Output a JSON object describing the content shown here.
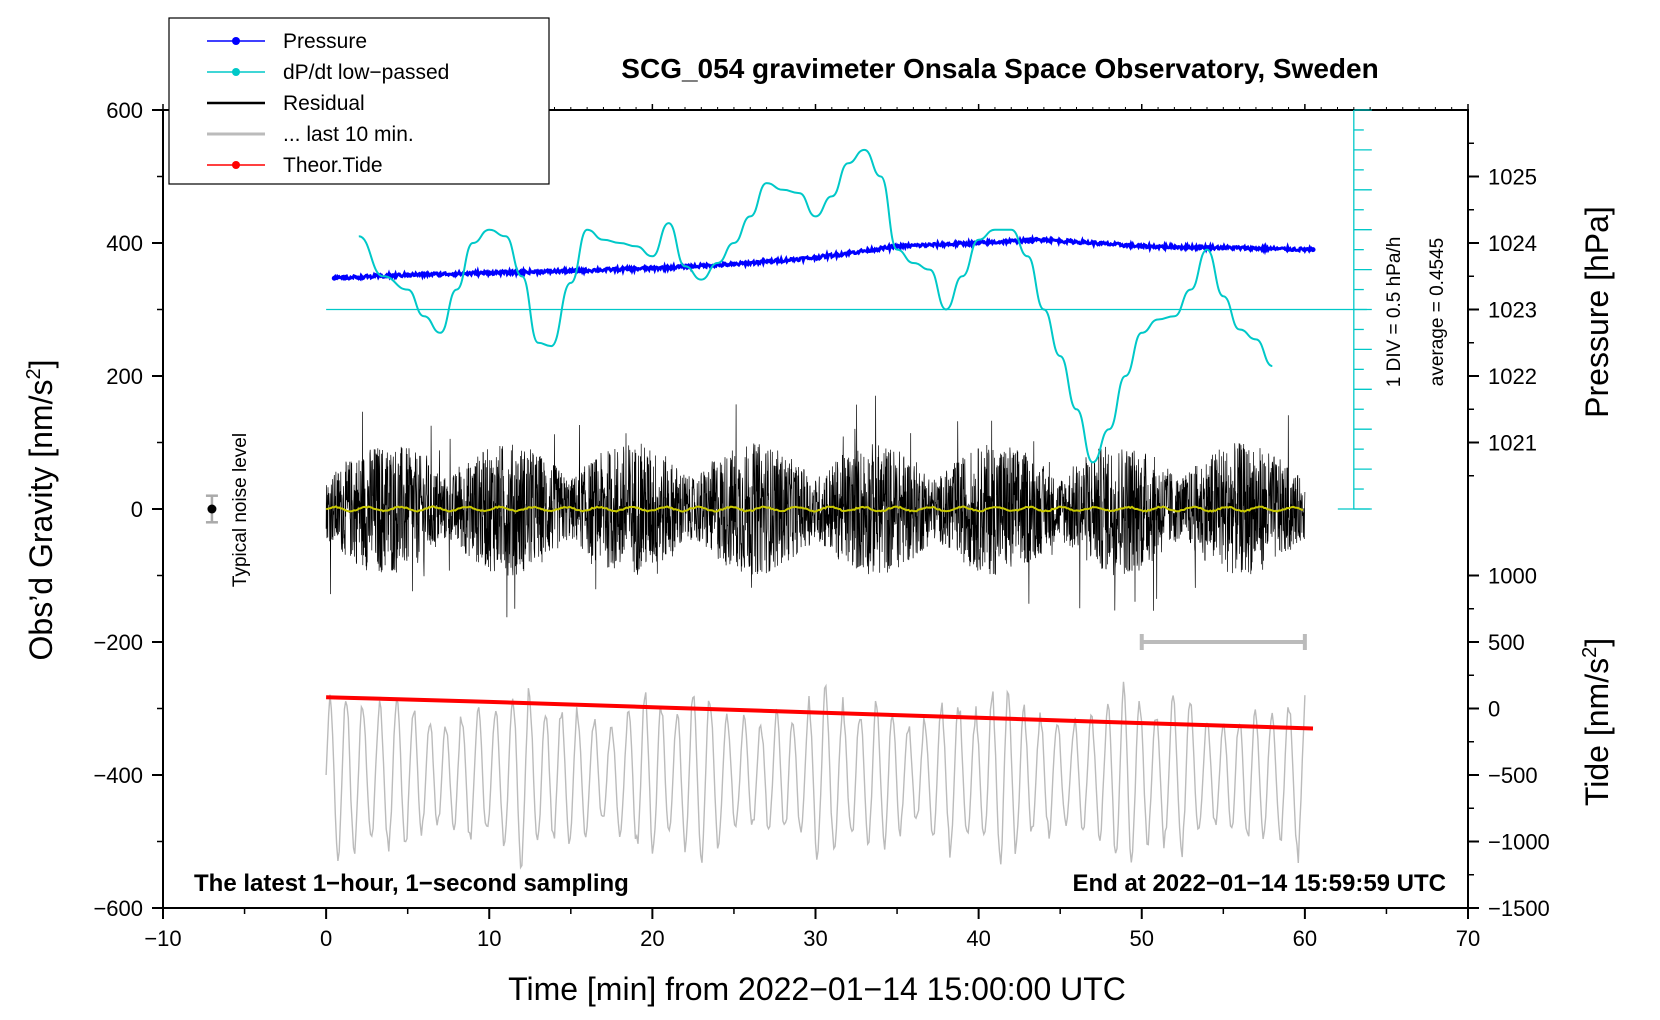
{
  "chart_data": {
    "type": "line",
    "title": "SCG_054 gravimeter Onsala Space Observatory, Sweden",
    "xlabel": "Time [min] from 2022−01−14 15:00:00 UTC",
    "ylabel_left": "Obs’d Gravity [nm/s",
    "ylabel_left_sup": "2",
    "ylabel_left_close": "]",
    "ylabel_pressure": "Pressure [hPa]",
    "ylabel_tide": "Tide [nm/s",
    "ylabel_tide_sup": "2",
    "ylabel_tide_close": "]",
    "xlim": [
      -10,
      70
    ],
    "ylim": [
      -600,
      600
    ],
    "x_ticks": [
      -10,
      0,
      10,
      20,
      30,
      40,
      50,
      60,
      70
    ],
    "x_tick_labels": [
      "−10",
      "0",
      "10",
      "20",
      "30",
      "40",
      "50",
      "60",
      "70"
    ],
    "y_ticks": [
      600,
      400,
      200,
      0,
      -200,
      -400,
      -600
    ],
    "y_tick_labels": [
      "600",
      "400",
      "200",
      "0",
      "−200",
      "−400",
      "−600"
    ],
    "pressure_axis": {
      "ticks": [
        1025,
        1024,
        1023,
        1022,
        1021
      ],
      "tick_labels": [
        "1025",
        "1024",
        "1023",
        "1022",
        "1021"
      ],
      "gravity_equiv_at_1023": 300,
      "gravity_per_hPa": 100
    },
    "tide_axis": {
      "ticks": [
        1000,
        500,
        0,
        -500,
        -1000,
        -1500
      ],
      "tick_labels": [
        "1000",
        "500",
        "0",
        "−500",
        "−1000",
        "−1500"
      ],
      "gravity_equiv_at_0": -300,
      "gravity_per_unit": 0.2
    },
    "dpdt_scale": {
      "label": "1 DIV = 0.5 hPa/h",
      "average_label": "average = 0.4545",
      "baseline_gravity": 300
    },
    "noise_level_label": "Typical noise level",
    "noise_level": {
      "x": -7,
      "y": 0,
      "err": 20
    },
    "last10_bar": {
      "x_start": 50,
      "x_end": 60,
      "y": -200
    },
    "bottom_left_note": "The latest 1−hour, 1−second sampling",
    "bottom_right_note": "End at 2022−01−14 15:59:59 UTC",
    "legend": [
      {
        "label": "Pressure",
        "color": "#0000ff",
        "marker": "dot"
      },
      {
        "label": "dP/dt low−passed",
        "color": "#00c8c8",
        "marker": "dot"
      },
      {
        "label": "Residual",
        "color": "#000000",
        "marker": "none"
      },
      {
        "label": "... last 10 min.",
        "color": "#bbbbbb",
        "marker": "none"
      },
      {
        "label": "Theor.Tide",
        "color": "#ff0000",
        "marker": "dot"
      }
    ],
    "series": [
      {
        "name": "Pressure",
        "color": "#0000ff",
        "unit": "hPa",
        "x": [
          0.5,
          5,
          10,
          15,
          20,
          25,
          30,
          35,
          40,
          44,
          50,
          55,
          60.5
        ],
        "y": [
          1023.47,
          1023.52,
          1023.55,
          1023.58,
          1023.62,
          1023.68,
          1023.78,
          1023.95,
          1024.0,
          1024.05,
          1023.95,
          1023.93,
          1023.9
        ]
      },
      {
        "name": "dP/dt low−passed",
        "color": "#00c8c8",
        "unit": "gravity-equivalent",
        "x": [
          2,
          3.5,
          5,
          6,
          7,
          8,
          9,
          10,
          11,
          12,
          13,
          13.8,
          15,
          16,
          17,
          18,
          19,
          20,
          21,
          22,
          23,
          24,
          25,
          26,
          27,
          28,
          29,
          30,
          31,
          32,
          33,
          34,
          35,
          36,
          37,
          38,
          39,
          40,
          41,
          42,
          43,
          44,
          45,
          46,
          47,
          48,
          49,
          50,
          51,
          52,
          53,
          54,
          55,
          56,
          57,
          58
        ],
        "y": [
          410,
          350,
          330,
          290,
          265,
          330,
          400,
          420,
          410,
          350,
          250,
          245,
          340,
          420,
          405,
          400,
          395,
          380,
          430,
          365,
          345,
          370,
          400,
          440,
          490,
          480,
          475,
          440,
          470,
          520,
          540,
          500,
          390,
          370,
          360,
          300,
          350,
          405,
          420,
          420,
          380,
          300,
          230,
          150,
          70,
          120,
          200,
          265,
          285,
          290,
          330,
          390,
          320,
          270,
          255,
          215
        ]
      },
      {
        "name": "Residual",
        "color": "#000000",
        "unit": "nm/s2",
        "x_range": [
          0,
          60
        ],
        "typical_amplitude": 100,
        "peak_amplitude": 220
      },
      {
        "name": "Residual (smoothed)",
        "color": "#c8c800",
        "unit": "nm/s2",
        "x_range": [
          0,
          60
        ],
        "typical_value": 0
      },
      {
        "name": "... last 10 min.",
        "color": "#bbbbbb",
        "unit": "nm/s2",
        "x_range": [
          0,
          60
        ],
        "center": -400,
        "amplitude": 130
      },
      {
        "name": "Theor.Tide",
        "color": "#ff0000",
        "unit": "nm/s2 tide",
        "x": [
          0,
          10,
          20,
          30,
          40,
          50,
          60.5
        ],
        "y": [
          85,
          50,
          10,
          -30,
          -70,
          -110,
          -150
        ]
      }
    ]
  }
}
